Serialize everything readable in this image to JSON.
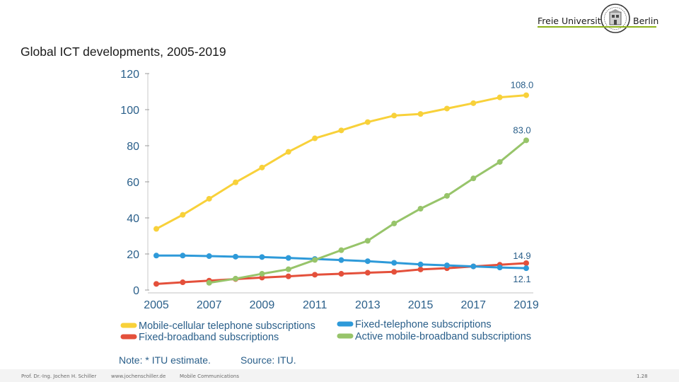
{
  "header": {
    "logo_left": "Freie Universität",
    "logo_right": "Berlin"
  },
  "slide_title": "Global ICT developments, 2005-2019",
  "footer": {
    "author": "Prof. Dr.-Ing. Jochen H. Schiller",
    "url": "www.jochenschiller.de",
    "course": "Mobile Communications",
    "page": "1.28"
  },
  "colors": {
    "mobile_cellular": "#f8d13a",
    "fixed_telephone": "#2e9ad9",
    "fixed_broadband": "#e4503b",
    "active_mobile_broadband": "#97c46a",
    "axis_text": "#2a5f8a",
    "logo_line": "#8cb21a"
  },
  "chart_data": {
    "type": "line",
    "title": "",
    "xlabel": "",
    "ylabel": "",
    "x": [
      "2005",
      "2006",
      "2007",
      "2008",
      "2009",
      "2010",
      "2011",
      "2012",
      "2013",
      "2014",
      "2015",
      "2016",
      "2017",
      "2018",
      "2019"
    ],
    "x_tick_labels": [
      "2005",
      "2007",
      "2009",
      "2011",
      "2013",
      "2015",
      "2017",
      "2019"
    ],
    "y_ticks": [
      0,
      20,
      40,
      60,
      80,
      100,
      120
    ],
    "y_tick_labels": [
      "0",
      "20",
      "40",
      "60",
      "80",
      "100",
      "120"
    ],
    "ylim": [
      0,
      120
    ],
    "grid": false,
    "legend_position": "bottom",
    "series": [
      {
        "name": "Mobile-cellular telephone subscriptions",
        "color_key": "mobile_cellular",
        "values": [
          33.9,
          41.7,
          50.6,
          59.7,
          67.9,
          76.6,
          84.1,
          88.5,
          93.1,
          96.7,
          97.6,
          100.6,
          103.6,
          106.8,
          108.0
        ],
        "end_label": "108.0"
      },
      {
        "name": "Fixed-telephone subscriptions",
        "color_key": "fixed_telephone",
        "values": [
          19.1,
          19.1,
          18.8,
          18.5,
          18.3,
          17.8,
          17.2,
          16.6,
          16.0,
          15.1,
          14.2,
          13.7,
          13.1,
          12.5,
          12.1
        ],
        "end_label": "12.1"
      },
      {
        "name": "Fixed-broadband subscriptions",
        "color_key": "fixed_broadband",
        "values": [
          3.4,
          4.3,
          5.2,
          6.1,
          6.9,
          7.6,
          8.5,
          9.0,
          9.6,
          10.1,
          11.4,
          12.1,
          13.1,
          14.0,
          14.9
        ],
        "end_label": "14.9"
      },
      {
        "name": "Active mobile-broadband subscriptions",
        "color_key": "active_mobile_broadband",
        "values": [
          null,
          null,
          4.0,
          6.3,
          9.0,
          11.5,
          16.7,
          22.1,
          27.3,
          36.9,
          45.1,
          52.2,
          61.9,
          71.0,
          83.0
        ],
        "end_label": "83.0"
      }
    ],
    "legend": [
      "Mobile-cellular telephone subscriptions",
      "Fixed-telephone subscriptions",
      "Fixed-broadband subscriptions",
      "Active mobile-broadband subscriptions"
    ],
    "note": "Note: * ITU estimate.",
    "source": "Source: ITU."
  }
}
